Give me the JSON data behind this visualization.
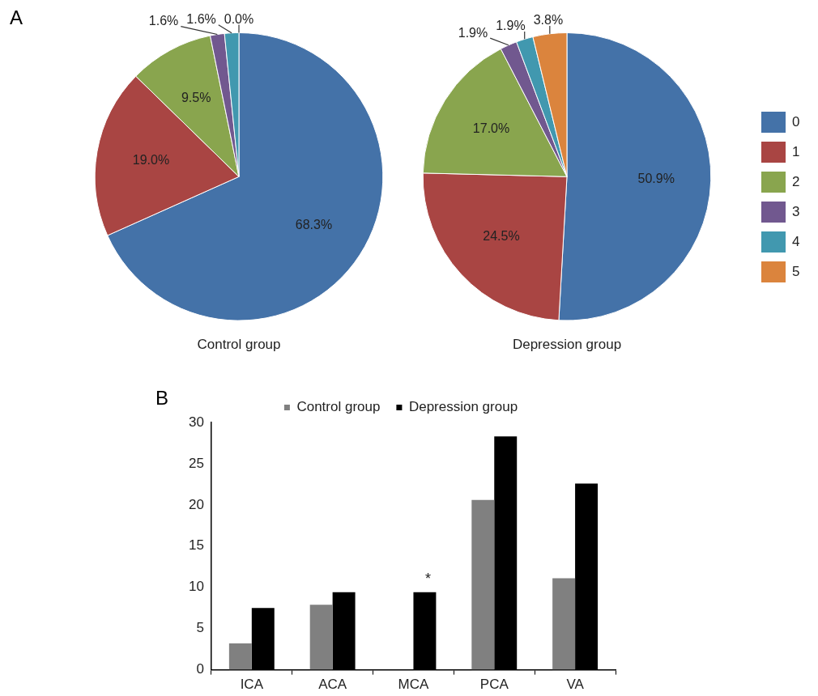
{
  "chart_data": [
    {
      "type": "pie",
      "title": "Control group",
      "categories": [
        null,
        null,
        null,
        null,
        null,
        null
      ],
      "values": [
        68.3,
        19.0,
        9.5,
        1.6,
        1.6,
        0.0
      ],
      "colors": [
        "#4472a8",
        "#a94543",
        "#89a54e",
        "#71588f",
        "#4198af",
        "#db843d"
      ],
      "value_labels": [
        "68.3%",
        "19.0%",
        "9.5%",
        "1.6%",
        "1.6%",
        "0.0%"
      ],
      "annotations": [
        "A"
      ]
    },
    {
      "type": "pie",
      "title": "Depression group",
      "categories": [
        "0",
        "1",
        "2",
        "3",
        "4",
        "5"
      ],
      "values": [
        50.9,
        24.5,
        17.0,
        1.9,
        1.9,
        3.8
      ],
      "colors": [
        "#4472a8",
        "#a94543",
        "#89a54e",
        "#71588f",
        "#4198af",
        "#db843d"
      ],
      "value_labels": [
        "50.9%",
        "24.5%",
        "17.0%",
        "1.9%",
        "1.9%",
        "3.8%"
      ],
      "legend": "right"
    },
    {
      "type": "bar",
      "categories": [
        "ICA",
        "ACA",
        "MCA",
        "PCA",
        "VA"
      ],
      "series": [
        {
          "name": "Control group",
          "color": "#808080",
          "values": [
            3.2,
            7.9,
            0,
            20.6,
            11.1
          ]
        },
        {
          "name": "Depression group",
          "color": "#000000",
          "values": [
            7.5,
            9.4,
            9.4,
            28.3,
            22.6
          ]
        }
      ],
      "ylim": [
        0,
        30
      ],
      "yticks": [
        0,
        5,
        10,
        15,
        20,
        25,
        30
      ],
      "legend": "top",
      "annotations": [
        "B",
        "*"
      ]
    }
  ]
}
